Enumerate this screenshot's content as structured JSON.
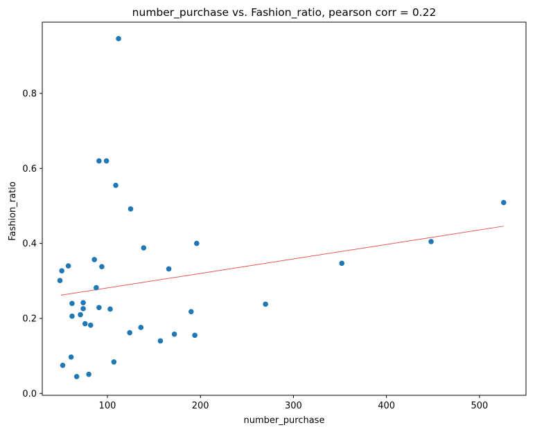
{
  "chart_data": {
    "type": "scatter",
    "title": "number_purchase vs. Fashion_ratio, pearson corr = 0.22",
    "xlabel": "number_purchase",
    "ylabel": "Fashion_ratio",
    "xlim": [
      30,
      550
    ],
    "ylim": [
      -0.005,
      0.99
    ],
    "xticks": [
      100,
      200,
      300,
      400,
      500
    ],
    "yticks": [
      0.0,
      0.2,
      0.4,
      0.6,
      0.8
    ],
    "xtick_labels": [
      "100",
      "200",
      "300",
      "400",
      "500"
    ],
    "ytick_labels": [
      "0.0",
      "0.2",
      "0.4",
      "0.6",
      "0.8"
    ],
    "grid": false,
    "point_color": "#1f77b4",
    "line_color": "#e8554e",
    "trendline": {
      "x": [
        50,
        526
      ],
      "y": [
        0.262,
        0.446
      ]
    },
    "series": [
      {
        "x": [
          112,
          91,
          99,
          109,
          125,
          526,
          448,
          196,
          139,
          352,
          166,
          49,
          51,
          58,
          86,
          94,
          88,
          62,
          74,
          74,
          91,
          103,
          62,
          71,
          76,
          82,
          270,
          190,
          124,
          136,
          172,
          194,
          157,
          61,
          52,
          67,
          80,
          107
        ],
        "y": [
          0.946,
          0.62,
          0.62,
          0.555,
          0.492,
          0.509,
          0.405,
          0.4,
          0.388,
          0.347,
          0.332,
          0.301,
          0.327,
          0.34,
          0.357,
          0.338,
          0.282,
          0.24,
          0.242,
          0.226,
          0.229,
          0.225,
          0.206,
          0.21,
          0.186,
          0.182,
          0.238,
          0.218,
          0.162,
          0.176,
          0.158,
          0.155,
          0.14,
          0.097,
          0.075,
          0.045,
          0.051,
          0.084
        ]
      }
    ]
  }
}
